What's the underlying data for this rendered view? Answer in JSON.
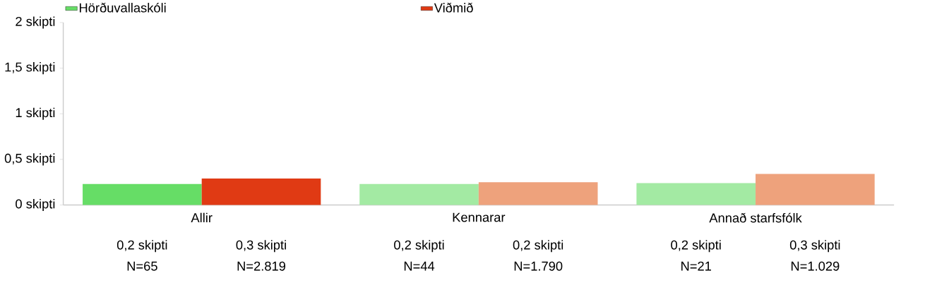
{
  "chart_data": {
    "type": "bar",
    "categories": [
      "Allir",
      "Kennarar",
      "Annað starfsfólk"
    ],
    "series": [
      {
        "name": "Hörðuvallaskóli",
        "color": "#66dd66",
        "colors": [
          "#66dd66",
          "#a3eaa3",
          "#a3eaa3"
        ],
        "values": [
          0.23,
          0.23,
          0.24
        ],
        "value_labels": [
          "0,2 skipti",
          "0,2 skipti",
          "0,2 skipti"
        ]
      },
      {
        "name": "Viðmið",
        "color": "#e03a14",
        "colors": [
          "#e03a14",
          "#eea27c",
          "#eea27c"
        ],
        "values": [
          0.29,
          0.25,
          0.34
        ],
        "value_labels": [
          "0,3 skipti",
          "0,2 skipti",
          "0,3 skipti"
        ]
      }
    ],
    "ylim": [
      0,
      2
    ],
    "yticks": [
      {
        "value": 0,
        "label": "0 skipti"
      },
      {
        "value": 0.5,
        "label": "0,5 skipti"
      },
      {
        "value": 1,
        "label": "1 skipti"
      },
      {
        "value": 1.5,
        "label": "1,5 skipti"
      },
      {
        "value": 2,
        "label": "2 skipti"
      }
    ],
    "legend": "top",
    "annotations": [
      "N=65",
      "N=2.819",
      "N=44",
      "N=1.790",
      "N=21",
      "N=1.029"
    ]
  }
}
